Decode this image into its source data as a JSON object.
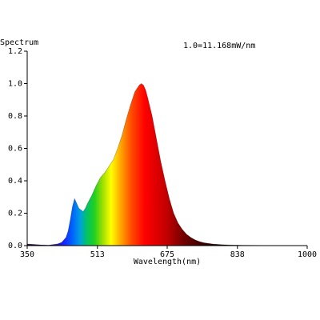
{
  "chart_data": {
    "type": "area",
    "title": "",
    "ylabel": "Spectrum",
    "xlabel": "Wavelength(nm)",
    "scale_note": "1.0=11.168mW/nm",
    "xlim": [
      350,
      1000
    ],
    "ylim": [
      0,
      1.2
    ],
    "xticks": [
      350,
      513,
      675,
      838,
      1000
    ],
    "xtick_labels": [
      "350",
      "513",
      "675",
      "838",
      "1000"
    ],
    "yticks": [
      0,
      0.2,
      0.4,
      0.6,
      0.8,
      1.0,
      1.2
    ],
    "ytick_labels": [
      "0.0",
      "0.2",
      "0.4",
      "0.6",
      "0.8",
      "1.0",
      "1.2"
    ],
    "grid": false,
    "fill": "visible-spectrum gradient under curve",
    "series": [
      {
        "x": [
          350,
          380,
          400,
          420,
          430,
          440,
          445,
          450,
          455,
          460,
          465,
          470,
          475,
          480,
          485,
          490,
          500,
          510,
          520,
          530,
          540,
          550,
          560,
          570,
          580,
          590,
          600,
          610,
          615,
          620,
          625,
          630,
          640,
          650,
          660,
          670,
          680,
          690,
          700,
          710,
          720,
          730,
          740,
          750,
          760,
          780,
          800,
          820,
          840,
          860,
          880,
          900,
          950,
          1000
        ],
        "y": [
          0.01,
          0.005,
          0.003,
          0.01,
          0.02,
          0.05,
          0.09,
          0.16,
          0.24,
          0.29,
          0.26,
          0.23,
          0.22,
          0.21,
          0.23,
          0.26,
          0.31,
          0.37,
          0.42,
          0.45,
          0.49,
          0.53,
          0.6,
          0.68,
          0.78,
          0.87,
          0.95,
          0.99,
          1.0,
          0.99,
          0.96,
          0.91,
          0.8,
          0.66,
          0.52,
          0.4,
          0.29,
          0.2,
          0.14,
          0.1,
          0.07,
          0.05,
          0.035,
          0.025,
          0.018,
          0.01,
          0.006,
          0.004,
          0.003,
          0.002,
          0.0015,
          0.001,
          0.0005,
          0.0
        ]
      }
    ],
    "colors": {
      "axis": "#000000",
      "background": "#ffffff",
      "line": "#000000"
    }
  }
}
